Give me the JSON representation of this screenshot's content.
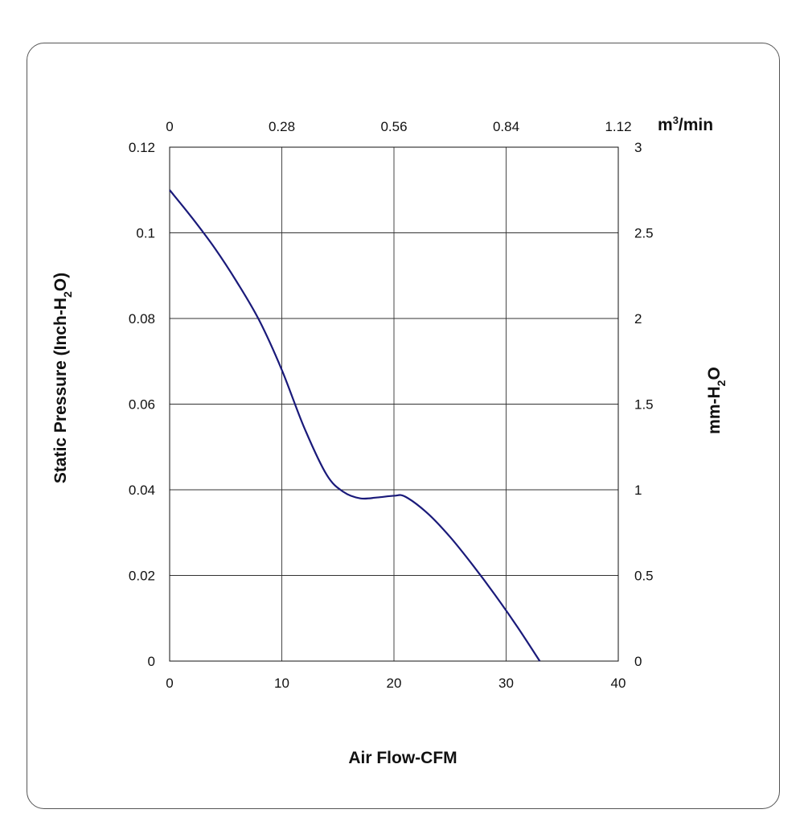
{
  "chart_data": {
    "type": "line",
    "xlabel": "Air Flow-CFM",
    "ylabel": {
      "main": "Static Pressure (Inch-H",
      "sub": "2",
      "tail": "O)"
    },
    "y2label": {
      "main": "mm-H",
      "sub": "2",
      "tail": "O"
    },
    "x2label": {
      "main": "m",
      "sup": "3",
      "tail": "/min"
    },
    "xlim": [
      0,
      40
    ],
    "ylim": [
      0,
      0.12
    ],
    "y2lim": [
      0,
      3
    ],
    "x2lim": [
      0,
      1.12
    ],
    "x_ticks": [
      "0",
      "10",
      "20",
      "30",
      "40"
    ],
    "y_ticks": [
      "0",
      "0.02",
      "0.04",
      "0.06",
      "0.08",
      "0.1",
      "0.12"
    ],
    "y2_ticks": [
      "0",
      "0.5",
      "1",
      "1.5",
      "2",
      "2.5",
      "3"
    ],
    "x2_ticks": [
      "0",
      "0.28",
      "0.56",
      "0.84",
      "1.12"
    ],
    "grid": true,
    "line_color": "#1a1a7a",
    "series": [
      {
        "x": [
          0,
          2,
          4,
          6,
          8,
          10,
          12,
          14,
          15.5,
          17,
          18.5,
          20,
          21,
          23,
          25,
          27,
          29,
          31,
          33
        ],
        "y": [
          0.11,
          0.1035,
          0.0965,
          0.0885,
          0.0795,
          0.068,
          0.0545,
          0.0435,
          0.0395,
          0.038,
          0.0382,
          0.0386,
          0.0384,
          0.0345,
          0.029,
          0.0225,
          0.0155,
          0.008,
          0.0
        ]
      }
    ]
  }
}
